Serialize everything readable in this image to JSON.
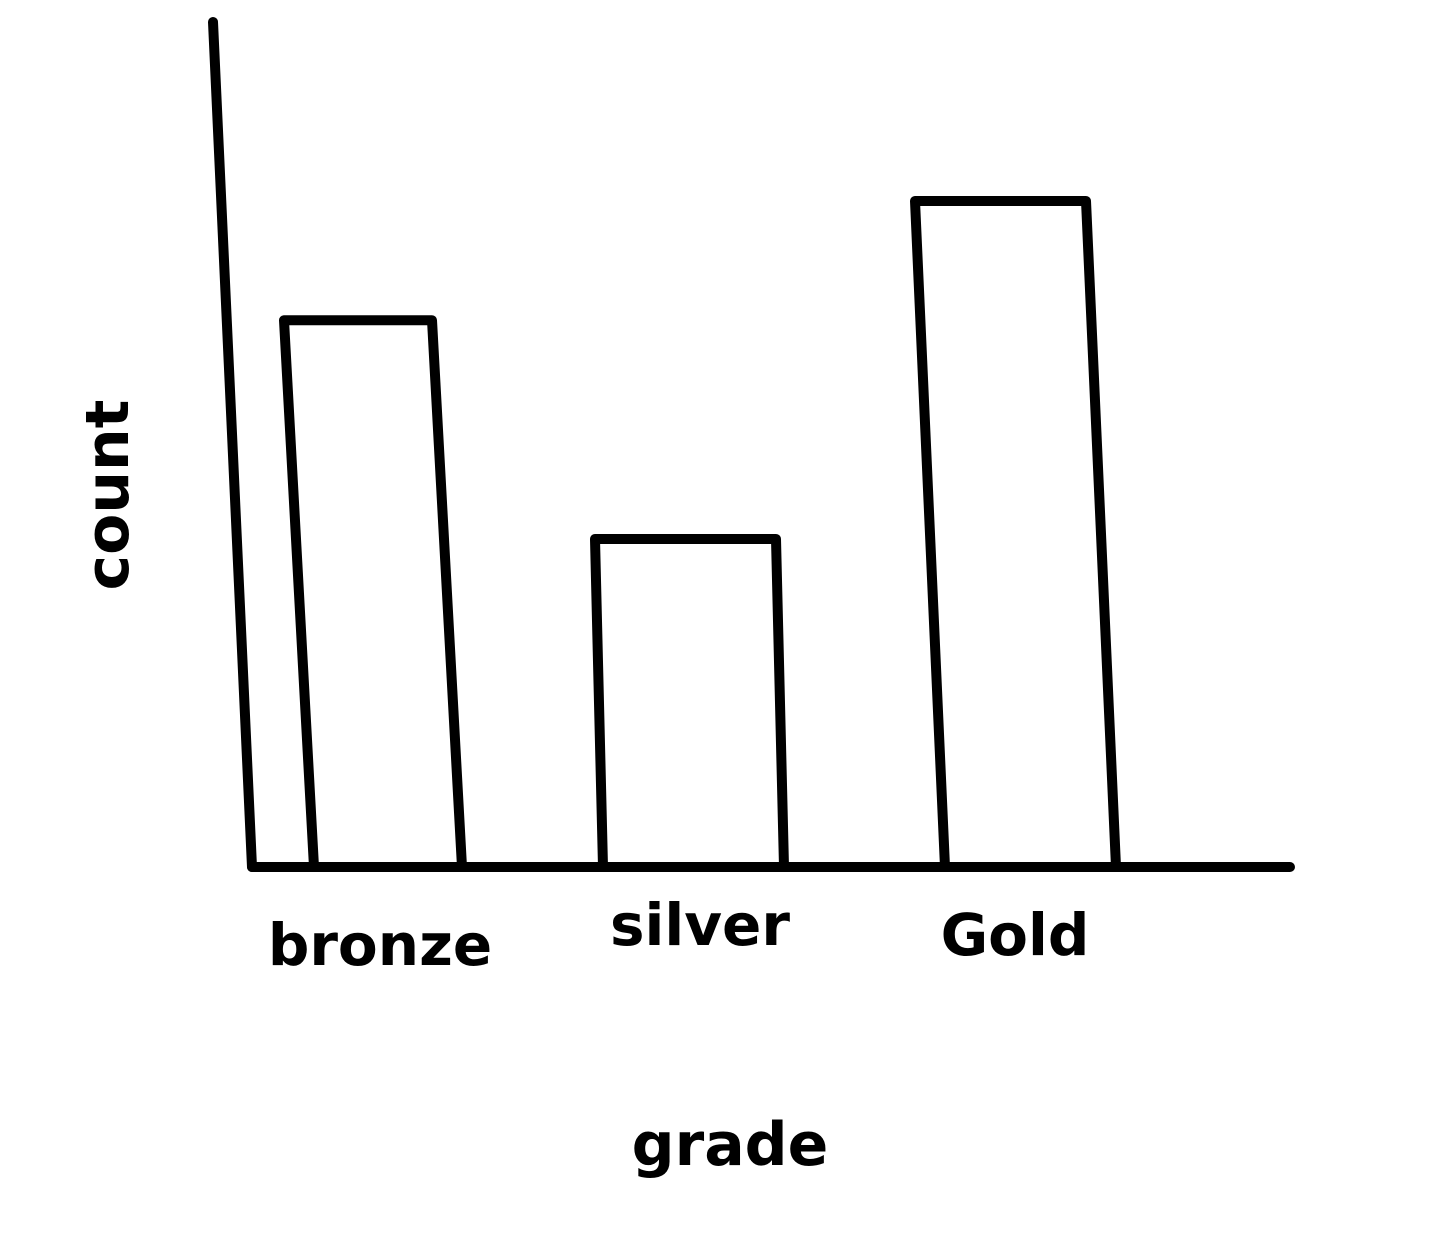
{
  "chart_data": {
    "type": "bar",
    "categories": [
      "bronze",
      "silver",
      "Gold"
    ],
    "values": [
      55,
      33,
      67
    ],
    "xlabel": "grade",
    "ylabel": "count",
    "ylim": [
      0,
      85
    ],
    "grid": false,
    "legend": "none",
    "style": "hand-drawn outline, no fill"
  }
}
